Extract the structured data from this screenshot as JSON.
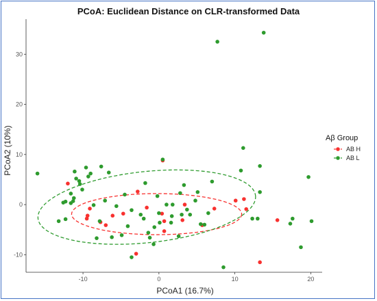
{
  "chart_data": {
    "type": "scatter",
    "title": "PCoA: Euclidean Distance on CLR-transformed Data",
    "xlabel": "PCoA1 (16.7%)",
    "ylabel": "PCoA2 (10%)",
    "xlim": [
      -17.5,
      21.5
    ],
    "ylim": [
      -13.5,
      37
    ],
    "xticks": [
      -10,
      0,
      10,
      20
    ],
    "yticks": [
      -10,
      0,
      10,
      20,
      30
    ],
    "xtick_labels": [
      "-10",
      "0",
      "10",
      "20"
    ],
    "ytick_labels": [
      "-10",
      "0",
      "10",
      "20",
      "30"
    ],
    "grid": false,
    "legend": {
      "title": "Aβ Group",
      "position": "right"
    },
    "series": [
      {
        "name": "AB H",
        "color": "#f8312f",
        "ellipse": {
          "cx": -0.3,
          "cy": -1.9,
          "rx": 11.2,
          "ry": 4.1,
          "angle_deg": 0
        },
        "points": [
          [
            -12,
            4.2
          ],
          [
            -9.5,
            -2.8
          ],
          [
            -9.4,
            -2.2
          ],
          [
            -9.1,
            -0.8
          ],
          [
            -7.7,
            -3.5
          ],
          [
            -7.0,
            -4.1
          ],
          [
            -6.1,
            -2.2
          ],
          [
            -4.7,
            -1.8
          ],
          [
            -3.0,
            -9.8
          ],
          [
            -2.8,
            2.6
          ],
          [
            -1.6,
            -0.6
          ],
          [
            0.5,
            8.8
          ],
          [
            0.4,
            -1.8
          ],
          [
            0.7,
            -3.3
          ],
          [
            0.7,
            -5.3
          ],
          [
            3.1,
            -3.1
          ],
          [
            3.4,
            0.0
          ],
          [
            5.7,
            -4.1
          ],
          [
            7.3,
            -0.8
          ],
          [
            10.1,
            0.8
          ],
          [
            11.2,
            1.1
          ],
          [
            11.5,
            -0.9
          ],
          [
            13.3,
            -11.5
          ],
          [
            15.6,
            -3.1
          ]
        ]
      },
      {
        "name": "AB L",
        "color": "#2e9b2e",
        "ellipse": {
          "cx": -1.6,
          "cy": -0.5,
          "rx": 14.4,
          "ry": 7.1,
          "angle_deg": -6
        },
        "points": [
          [
            -16,
            6.2
          ],
          [
            -13.2,
            -3.3
          ],
          [
            -12.3,
            -2.9
          ],
          [
            -12.6,
            0.4
          ],
          [
            -12.3,
            0.6
          ],
          [
            -11.6,
            0.3
          ],
          [
            -11.3,
            0.7
          ],
          [
            -11.6,
            2.2
          ],
          [
            -11.2,
            1.3
          ],
          [
            -11.1,
            6.6
          ],
          [
            -10.9,
            5.2
          ],
          [
            -10.5,
            4.7
          ],
          [
            -10.1,
            3.0
          ],
          [
            -10.4,
            4.1
          ],
          [
            -9.6,
            7.4
          ],
          [
            -9.3,
            5.6
          ],
          [
            -9.0,
            6.2
          ],
          [
            -8.6,
            -0.1
          ],
          [
            -8.2,
            -6.7
          ],
          [
            -7.6,
            7.6
          ],
          [
            -7.8,
            -3.3
          ],
          [
            -7.1,
            0.8
          ],
          [
            -6.6,
            6.4
          ],
          [
            -6.2,
            -6.5
          ],
          [
            -5.6,
            -0.3
          ],
          [
            -4.9,
            -6.1
          ],
          [
            -4.5,
            2.0
          ],
          [
            -4.1,
            -4.3
          ],
          [
            -3.6,
            -10.5
          ],
          [
            -3.6,
            -1.1
          ],
          [
            -2.4,
            -2.0
          ],
          [
            -2.0,
            -2.8
          ],
          [
            -1.8,
            4.3
          ],
          [
            -1.4,
            -5.6
          ],
          [
            -1.2,
            -6.6
          ],
          [
            -0.7,
            -7.9
          ],
          [
            -0.6,
            -4.5
          ],
          [
            -0.2,
            1.7
          ],
          [
            0.0,
            -1.7
          ],
          [
            0.1,
            -3.6
          ],
          [
            0.5,
            9.0
          ],
          [
            1.0,
            0.0
          ],
          [
            1.6,
            -3.6
          ],
          [
            1.7,
            -2.3
          ],
          [
            1.8,
            0.0
          ],
          [
            2.6,
            -6.3
          ],
          [
            2.8,
            2.3
          ],
          [
            3.0,
            -2.0
          ],
          [
            3.3,
            3.9
          ],
          [
            3.7,
            -1.0
          ],
          [
            4.1,
            -2.0
          ],
          [
            4.8,
            0.8
          ],
          [
            5.1,
            2.5
          ],
          [
            5.5,
            -3.9
          ],
          [
            6.0,
            -4.0
          ],
          [
            6.5,
            -1.7
          ],
          [
            7.0,
            4.6
          ],
          [
            7.7,
            32.5
          ],
          [
            8.5,
            -12.5
          ],
          [
            10.8,
            6.8
          ],
          [
            11.1,
            11.3
          ],
          [
            12.3,
            -2.8
          ],
          [
            13.0,
            -2.8
          ],
          [
            13.3,
            2.5
          ],
          [
            13.3,
            7.7
          ],
          [
            13.8,
            34.3
          ],
          [
            17.3,
            -3.8
          ],
          [
            17.6,
            -2.8
          ],
          [
            18.7,
            -8.5
          ],
          [
            19.7,
            5.5
          ],
          [
            20.1,
            -3.3
          ]
        ]
      }
    ]
  }
}
